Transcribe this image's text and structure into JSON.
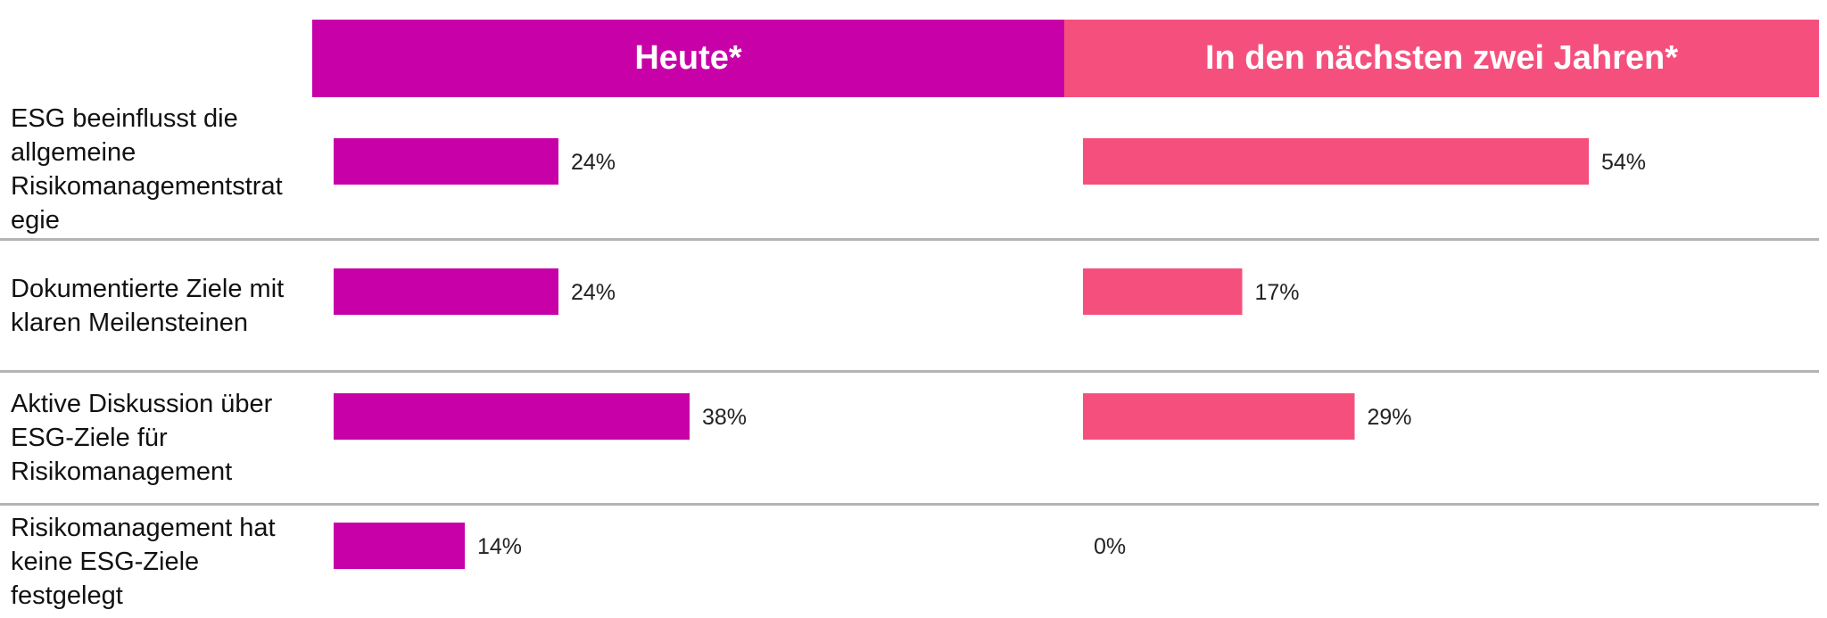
{
  "chart_data": {
    "type": "bar",
    "orientation": "horizontal",
    "categories": [
      "ESG beeinflusst die allgemeine Risikomanagementstrategie",
      "Dokumentierte Ziele mit klaren Meilensteinen",
      "Aktive Diskussion über ESG-Ziele für Risikomanagement",
      "Risikomanagement hat keine ESG-Ziele festgelegt"
    ],
    "category_lines": [
      [
        "ESG beeinflusst die",
        "allgemeine",
        "Risikomanagementstrat",
        "egie"
      ],
      [
        "Dokumentierte Ziele mit",
        "klaren Meilensteinen"
      ],
      [
        "Aktive Diskussion über",
        "ESG-Ziele für",
        "Risikomanagement"
      ],
      [
        "Risikomanagement hat",
        "keine ESG-Ziele",
        "festgelegt"
      ]
    ],
    "series": [
      {
        "name": "Heute*",
        "values": [
          24,
          24,
          38,
          14
        ],
        "color": "#c800a8"
      },
      {
        "name": "In den nächsten zwei Jahren*",
        "values": [
          54,
          17,
          29,
          0
        ],
        "color": "#f5507d"
      }
    ],
    "value_labels": [
      [
        "24%",
        "24%",
        "38%",
        "14%"
      ],
      [
        "54%",
        "17%",
        "29%",
        "0%"
      ]
    ],
    "value_suffix": "%",
    "grid": false
  }
}
